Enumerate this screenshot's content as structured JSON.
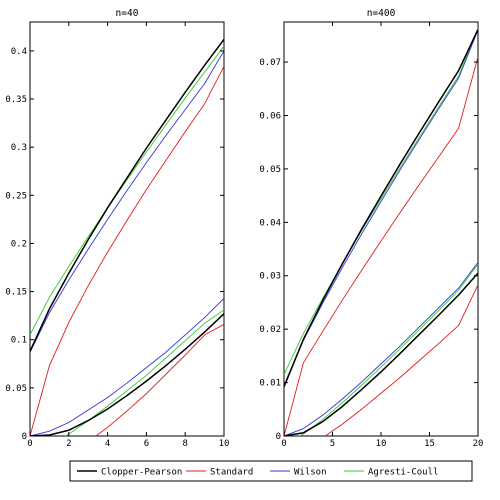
{
  "legend": {
    "placement": "bottom",
    "entries": [
      {
        "label": "Clopper-Pearson",
        "color": "#000000"
      },
      {
        "label": "Standard",
        "color": "#e41a1c"
      },
      {
        "label": "Wilson",
        "color": "#3333dd"
      },
      {
        "label": "Agresti-Coull",
        "color": "#33cc33"
      }
    ]
  },
  "chart_data": [
    {
      "type": "line",
      "title": "n=40",
      "xlabel": "",
      "ylabel": "",
      "xlim": [
        0,
        10
      ],
      "ylim": [
        0,
        0.43
      ],
      "x_ticks": [
        0,
        2,
        4,
        6,
        8,
        10
      ],
      "x_tick_labels": [
        "0",
        "2",
        "4",
        "6",
        "8",
        "10"
      ],
      "y_ticks": [
        0,
        0.05,
        0.1,
        0.15,
        0.2,
        0.25,
        0.3,
        0.35,
        0.4
      ],
      "y_tick_labels": [
        "0",
        "0.05",
        "0.1",
        "0.15",
        "0.2",
        "0.25",
        "0.3",
        "0.35",
        "0.4"
      ],
      "grid": false,
      "x": [
        0,
        1,
        2,
        3,
        4,
        5,
        6,
        7,
        8,
        9,
        10
      ],
      "series": [
        {
          "legend_index": 0,
          "values": [
            0.088,
            0.132,
            0.169,
            0.204,
            0.237,
            0.268,
            0.299,
            0.328,
            0.357,
            0.385,
            0.412
          ]
        },
        {
          "legend_index": 0,
          "values": [
            0,
            0.001,
            0.006,
            0.016,
            0.028,
            0.042,
            0.057,
            0.073,
            0.09,
            0.108,
            0.127
          ]
        },
        {
          "legend_index": 1,
          "values": [
            0,
            0.073,
            0.118,
            0.156,
            0.191,
            0.224,
            0.256,
            0.286,
            0.316,
            0.345,
            0.384
          ]
        },
        {
          "legend_index": 1,
          "values": [
            0,
            -0.023,
            -0.018,
            -0.006,
            0.009,
            0.026,
            0.044,
            0.064,
            0.084,
            0.105,
            0.116
          ]
        },
        {
          "legend_index": 2,
          "values": [
            0.087,
            0.128,
            0.162,
            0.194,
            0.225,
            0.255,
            0.284,
            0.312,
            0.339,
            0.366,
            0.4
          ]
        },
        {
          "legend_index": 2,
          "values": [
            0,
            0.005,
            0.014,
            0.027,
            0.04,
            0.055,
            0.071,
            0.087,
            0.105,
            0.123,
            0.143
          ]
        },
        {
          "legend_index": 3,
          "values": [
            0.105,
            0.144,
            0.176,
            0.207,
            0.237,
            0.266,
            0.295,
            0.323,
            0.351,
            0.378,
            0.405
          ]
        },
        {
          "legend_index": 3,
          "values": [
            -0.018,
            -0.01,
            0.002,
            0.016,
            0.031,
            0.047,
            0.063,
            0.081,
            0.099,
            0.117,
            0.131
          ]
        }
      ]
    },
    {
      "type": "line",
      "title": "n=400",
      "xlabel": "",
      "ylabel": "",
      "xlim": [
        0,
        20
      ],
      "ylim": [
        0,
        0.0775
      ],
      "x_ticks": [
        0,
        5,
        10,
        15,
        20
      ],
      "x_tick_labels": [
        "0",
        "5",
        "10",
        "15",
        "20"
      ],
      "y_ticks": [
        0,
        0.01,
        0.02,
        0.03,
        0.04,
        0.05,
        0.06,
        0.07
      ],
      "y_tick_labels": [
        "0",
        "0.01",
        "0.02",
        "0.03",
        "0.04",
        "0.05",
        "0.06",
        "0.07"
      ],
      "grid": false,
      "x": [
        0,
        2,
        4,
        6,
        8,
        10,
        12,
        14,
        16,
        18,
        20
      ],
      "series": [
        {
          "legend_index": 0,
          "values": [
            0.0092,
            0.0181,
            0.0254,
            0.0322,
            0.0387,
            0.0449,
            0.051,
            0.0569,
            0.0627,
            0.0684,
            0.0761
          ]
        },
        {
          "legend_index": 0,
          "values": [
            0,
            0.0006,
            0.0027,
            0.0055,
            0.0087,
            0.012,
            0.0155,
            0.0191,
            0.0227,
            0.0264,
            0.0305
          ]
        },
        {
          "legend_index": 1,
          "values": [
            0,
            0.0137,
            0.0196,
            0.0254,
            0.031,
            0.0365,
            0.0419,
            0.0472,
            0.0524,
            0.0576,
            0.071
          ]
        },
        {
          "legend_index": 1,
          "values": [
            0,
            -0.0025,
            -0.0003,
            0.0022,
            0.005,
            0.008,
            0.011,
            0.0142,
            0.0174,
            0.0207,
            0.0283
          ]
        },
        {
          "legend_index": 2,
          "values": [
            0.0095,
            0.0179,
            0.0249,
            0.0315,
            0.0378,
            0.0439,
            0.0499,
            0.0557,
            0.0614,
            0.067,
            0.076
          ]
        },
        {
          "legend_index": 2,
          "values": [
            0,
            0.0014,
            0.0039,
            0.0069,
            0.0101,
            0.0135,
            0.0169,
            0.0205,
            0.0241,
            0.0277,
            0.0325
          ]
        },
        {
          "legend_index": 3,
          "values": [
            0.0115,
            0.0192,
            0.0258,
            0.0322,
            0.0384,
            0.0444,
            0.0503,
            0.0561,
            0.0618,
            0.0674,
            0.0764
          ]
        },
        {
          "legend_index": 3,
          "values": [
            -0.0015,
            0.0004,
            0.0031,
            0.0062,
            0.0095,
            0.0129,
            0.0164,
            0.02,
            0.0236,
            0.0273,
            0.0322
          ]
        }
      ]
    }
  ]
}
